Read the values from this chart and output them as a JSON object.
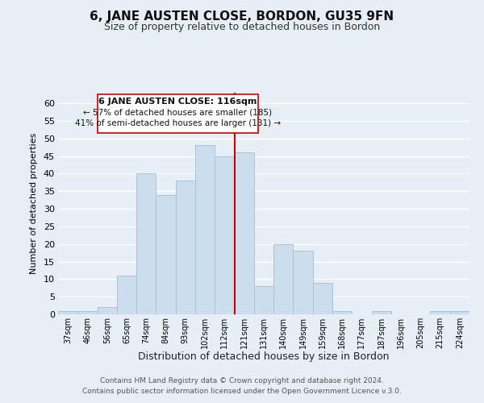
{
  "title": "6, JANE AUSTEN CLOSE, BORDON, GU35 9FN",
  "subtitle": "Size of property relative to detached houses in Bordon",
  "xlabel": "Distribution of detached houses by size in Bordon",
  "ylabel": "Number of detached properties",
  "bar_labels": [
    "37sqm",
    "46sqm",
    "56sqm",
    "65sqm",
    "74sqm",
    "84sqm",
    "93sqm",
    "102sqm",
    "112sqm",
    "121sqm",
    "131sqm",
    "140sqm",
    "149sqm",
    "159sqm",
    "168sqm",
    "177sqm",
    "187sqm",
    "196sqm",
    "205sqm",
    "215sqm",
    "224sqm"
  ],
  "bar_values": [
    1,
    1,
    2,
    11,
    40,
    34,
    38,
    48,
    45,
    46,
    8,
    20,
    18,
    9,
    1,
    0,
    1,
    0,
    0,
    1,
    1
  ],
  "bar_color": "#ccdded",
  "bar_edge_color": "#a8c4d8",
  "vline_x": 8.5,
  "vline_color": "#cc0000",
  "ylim": [
    0,
    63
  ],
  "yticks": [
    0,
    5,
    10,
    15,
    20,
    25,
    30,
    35,
    40,
    45,
    50,
    55,
    60
  ],
  "annotation_title": "6 JANE AUSTEN CLOSE: 116sqm",
  "annotation_line1": "← 57% of detached houses are smaller (185)",
  "annotation_line2": "41% of semi-detached houses are larger (131) →",
  "annotation_box_color": "#ffffff",
  "annotation_box_edge": "#cc0000",
  "footer1": "Contains HM Land Registry data © Crown copyright and database right 2024.",
  "footer2": "Contains public sector information licensed under the Open Government Licence v.3.0.",
  "background_color": "#e8eef5",
  "grid_color": "#ffffff",
  "title_fontsize": 11,
  "subtitle_fontsize": 9
}
